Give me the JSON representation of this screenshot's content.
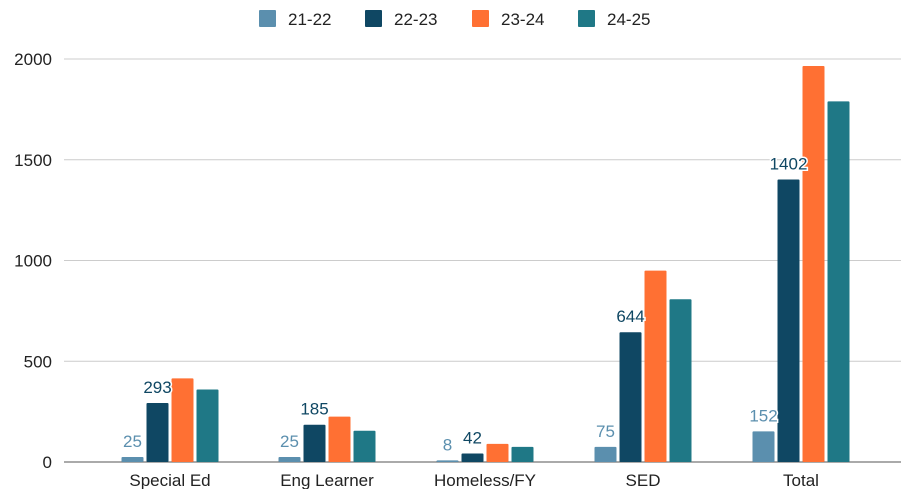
{
  "chart_data": {
    "type": "bar",
    "categories": [
      "Special Ed",
      "Eng Learner",
      "Homeless/FY",
      "SED",
      "Total"
    ],
    "series": [
      {
        "name": "21-22",
        "color": "#5b8fae",
        "values": [
          25,
          25,
          8,
          75,
          152
        ],
        "labels": [
          "25",
          "25",
          "8",
          "75",
          "152"
        ]
      },
      {
        "name": "22-23",
        "color": "#0f4763",
        "values": [
          293,
          185,
          42,
          644,
          1402
        ],
        "labels": [
          "293",
          "185",
          "42",
          "644",
          "1402"
        ]
      },
      {
        "name": "23-24",
        "color": "#ff7033",
        "values": [
          415,
          225,
          90,
          950,
          1965
        ],
        "labels": [
          "",
          "",
          "",
          "",
          ""
        ]
      },
      {
        "name": "24-25",
        "color": "#1f7886",
        "values": [
          360,
          155,
          75,
          808,
          1790
        ],
        "labels": [
          "",
          "",
          "",
          "",
          ""
        ]
      }
    ],
    "ylim": [
      0,
      2000
    ],
    "yticks": [
      0,
      500,
      1000,
      1500,
      2000
    ],
    "grid": true,
    "legend_position": "top"
  }
}
